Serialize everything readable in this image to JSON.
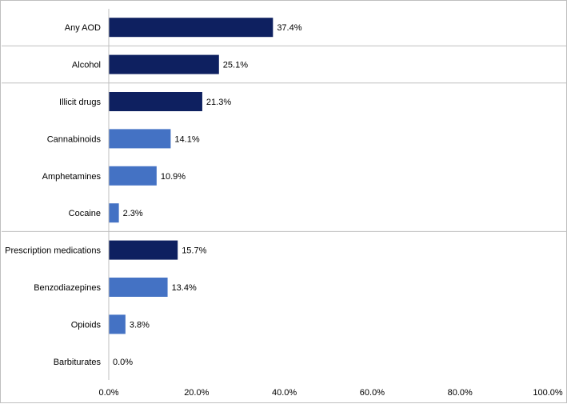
{
  "chart_data": {
    "type": "bar",
    "orientation": "horizontal",
    "categories": [
      "Any AOD",
      "Alcohol",
      "Illicit drugs",
      "Cannabinoids",
      "Amphetamines",
      "Cocaine",
      "Prescription medications",
      "Benzodiazepines",
      "Opioids",
      "Barbiturates"
    ],
    "values": [
      37.4,
      25.1,
      21.3,
      14.1,
      10.9,
      2.3,
      15.7,
      13.4,
      3.8,
      0.0
    ],
    "value_labels": [
      "37.4%",
      "25.1%",
      "21.3%",
      "14.1%",
      "10.9%",
      "2.3%",
      "15.7%",
      "13.4%",
      "3.8%",
      "0.0%"
    ],
    "levels": [
      "main",
      "main",
      "main",
      "sub",
      "sub",
      "sub",
      "main",
      "sub",
      "sub",
      "sub"
    ],
    "colors": {
      "main": "#0e2060",
      "sub": "#4472c4"
    },
    "xlim": [
      0,
      100
    ],
    "xticks": [
      0,
      20,
      40,
      60,
      80,
      100
    ],
    "xtick_labels": [
      "0.0%",
      "20.0%",
      "40.0%",
      "60.0%",
      "80.0%",
      "100.0%"
    ],
    "group_separators_after": [
      "Any AOD",
      "Alcohol",
      "Cocaine"
    ],
    "title": "",
    "xlabel": "",
    "ylabel": "",
    "grid": false,
    "legend": "none"
  }
}
